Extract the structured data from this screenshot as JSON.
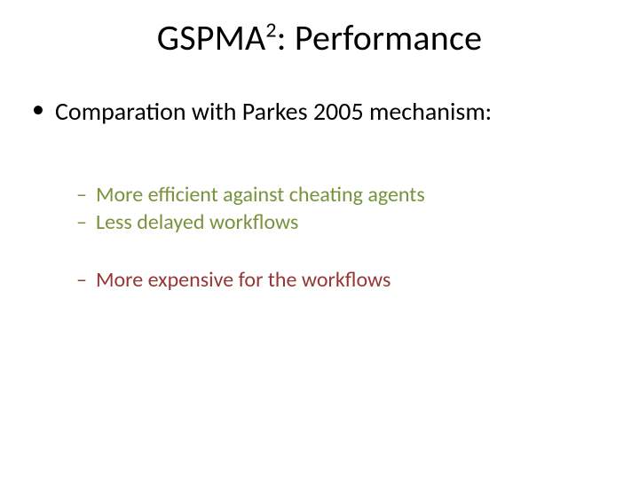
{
  "title": {
    "prefix": "GSPMA",
    "super": "2",
    "suffix": ": Performance",
    "fontsize": 40,
    "color": "#000000"
  },
  "body": {
    "l1_bullet": "•",
    "l2_dash": "–",
    "l1_item": "Comparation with Parkes 2005 mechanism:",
    "l2_items": [
      {
        "text": "More efficient against cheating agents",
        "color": "#77933c"
      },
      {
        "text": "Less delayed workflows",
        "color": "#77933c"
      },
      {
        "text": "More expensive for the workflows",
        "color": "#953735"
      }
    ],
    "l1_fontsize": 28,
    "l2_fontsize": 24
  },
  "background_color": "#ffffff"
}
